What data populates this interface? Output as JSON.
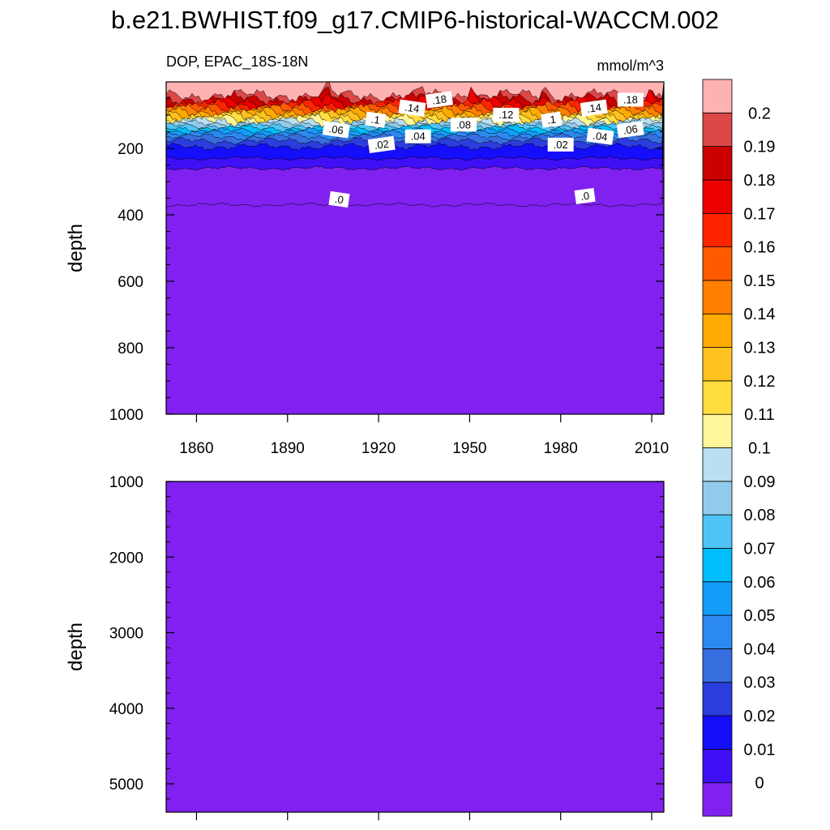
{
  "chart_data": {
    "title": "b.e21.BWHIST.f09_g17.CMIP6-historical-WACCM.002",
    "panels": [
      {
        "type": "contour",
        "variable": "DOP, EPAC_18S-18N",
        "units": "mmol/m^3",
        "ylabel": "depth",
        "y_reversed": true,
        "xlim": [
          1850,
          2014
        ],
        "ylim": [
          0,
          1000
        ],
        "x_ticks": [
          1860,
          1890,
          1920,
          1950,
          1980,
          2010
        ],
        "y_ticks": [
          200,
          400,
          600,
          800,
          1000
        ],
        "contour_depths_m": {
          "0.2": 40,
          "0.19": 50,
          "0.18": 58,
          "0.17": 66,
          "0.16": 73,
          "0.15": 80,
          "0.14": 87,
          "0.13": 94,
          "0.12": 101,
          "0.11": 108,
          "0.1": 115,
          "0.09": 123,
          "0.08": 131,
          "0.07": 139,
          "0.06": 147,
          "0.05": 155,
          "0.04": 165,
          "0.03": 178,
          "0.02": 195,
          "0.01": 230,
          "0": 260,
          "-0.01": 370
        },
        "contour_labels": [
          {
            "text": ".18",
            "year": 1940,
            "depth": 55
          },
          {
            "text": ".18",
            "year": 2003,
            "depth": 55
          },
          {
            "text": ".14",
            "year": 1931,
            "depth": 80
          },
          {
            "text": ".14",
            "year": 1991,
            "depth": 80
          },
          {
            "text": ".12",
            "year": 1962,
            "depth": 100
          },
          {
            "text": ".1",
            "year": 1919,
            "depth": 115
          },
          {
            "text": ".1",
            "year": 1977,
            "depth": 115
          },
          {
            "text": ".08",
            "year": 1948,
            "depth": 130
          },
          {
            "text": ".06",
            "year": 1906,
            "depth": 145
          },
          {
            "text": ".06",
            "year": 2003,
            "depth": 145
          },
          {
            "text": ".04",
            "year": 1933,
            "depth": 165
          },
          {
            "text": ".04",
            "year": 1993,
            "depth": 165
          },
          {
            "text": ".02",
            "year": 1921,
            "depth": 190
          },
          {
            "text": ".02",
            "year": 1980,
            "depth": 190
          },
          {
            "text": ".0",
            "year": 1907,
            "depth": 355
          },
          {
            "text": ".0",
            "year": 1988,
            "depth": 345
          }
        ]
      },
      {
        "type": "contour",
        "ylabel": "depth",
        "y_reversed": true,
        "xlim": [
          1850,
          2014
        ],
        "ylim": [
          1000,
          5375
        ],
        "y_ticks": [
          1000,
          2000,
          3000,
          4000,
          5000
        ],
        "fill_level": "0"
      }
    ],
    "colorbar": {
      "levels": [
        "0",
        "0.01",
        "0.02",
        "0.03",
        "0.04",
        "0.05",
        "0.06",
        "0.07",
        "0.08",
        "0.09",
        "0.1",
        "0.11",
        "0.12",
        "0.13",
        "0.14",
        "0.15",
        "0.16",
        "0.17",
        "0.18",
        "0.19",
        "0.2"
      ],
      "colors": [
        "#8021ef",
        "#3f10f5",
        "#140efa",
        "#2c3ddd",
        "#366ee0",
        "#2c89f0",
        "#139df9",
        "#00bef9",
        "#4ec4f6",
        "#90cbec",
        "#b9dff0",
        "#fff69a",
        "#ffdd3c",
        "#ffc11f",
        "#ffaa00",
        "#ff8000",
        "#ff5a00",
        "#ff2400",
        "#ed0000",
        "#cc0000",
        "#dc4747",
        "#ffb2b2"
      ]
    }
  }
}
